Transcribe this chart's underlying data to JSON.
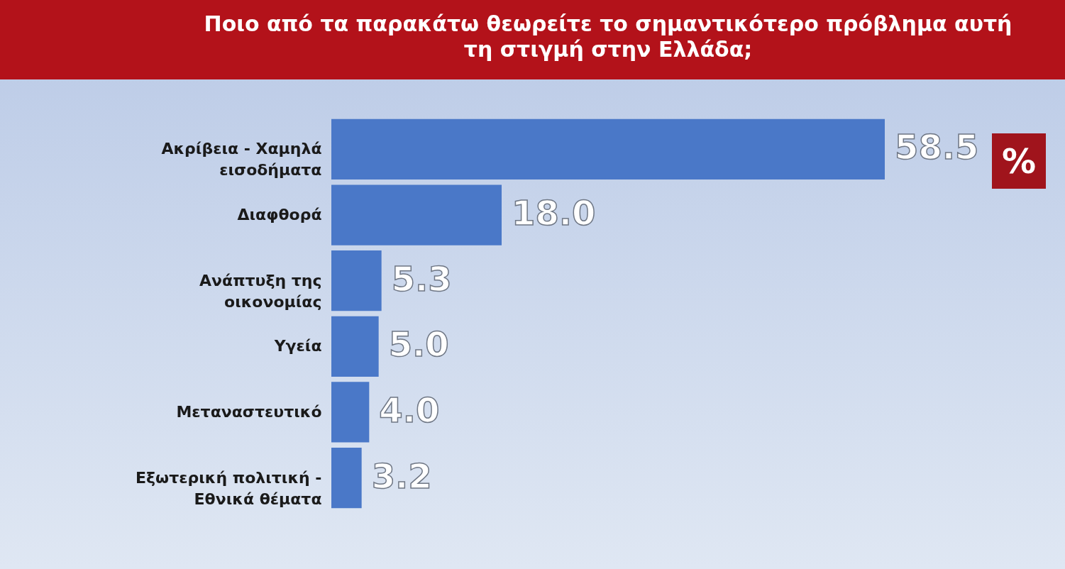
{
  "chart_data": {
    "type": "bar",
    "orientation": "horizontal",
    "title": "Ποιο από τα παρακάτω θεωρείτε το σημαντικότερο πρόβλημα αυτή τη στιγμή στην Ελλάδα;",
    "categories": [
      "Ακρίβεια - Χαμηλά εισοδήματα",
      "Διαφθορά",
      "Ανάπτυξη της οικονομίας",
      "Υγεία",
      "Μεταναστευτικό",
      "Εξωτερική πολιτική - Εθνικά θέματα"
    ],
    "values": [
      58.5,
      18.0,
      5.3,
      5.0,
      4.0,
      3.2
    ],
    "value_labels": [
      "58.5",
      "18.0",
      "5.3",
      "5.0",
      "4.0",
      "3.2"
    ],
    "color": "#4a78c8",
    "annotations": [
      "%"
    ]
  }
}
